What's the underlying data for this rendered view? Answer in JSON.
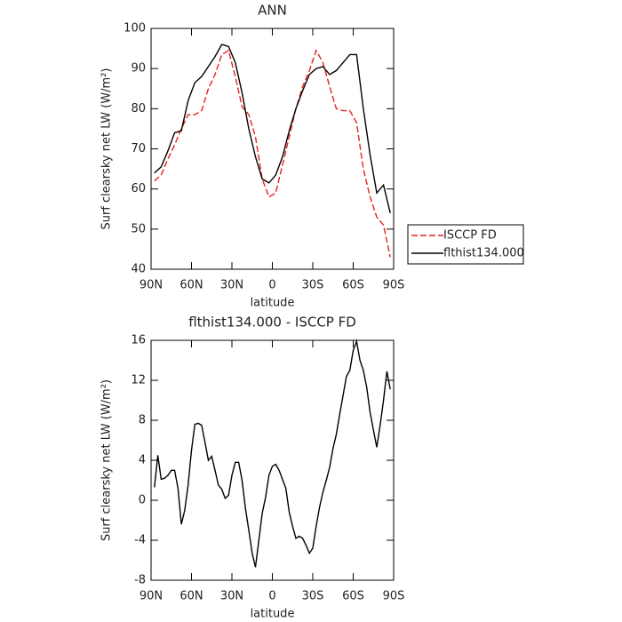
{
  "chart_data": [
    {
      "type": "line",
      "title": "ANN",
      "xlabel": "latitude",
      "ylabel": "Surf clearsky net LW (W/m²)",
      "x": [
        87.5,
        82.5,
        77.5,
        72.5,
        67.5,
        62.5,
        57.5,
        52.5,
        47.5,
        42.5,
        37.5,
        32.5,
        27.5,
        22.5,
        17.5,
        12.5,
        7.5,
        2.5,
        -2.5,
        -7.5,
        -12.5,
        -17.5,
        -22.5,
        -27.5,
        -32.5,
        -37.5,
        -42.5,
        -47.5,
        -52.5,
        -57.5,
        -62.5,
        -67.5,
        -72.5,
        -77.5,
        -82.5,
        -87.5
      ],
      "series": [
        {
          "name": "ISCCP FD",
          "color": "#e8201c",
          "dash": true,
          "values": [
            62,
            63.5,
            67.5,
            71,
            75,
            78.5,
            78.5,
            79.5,
            85,
            88.5,
            93.5,
            94.5,
            88,
            80.5,
            78.5,
            73,
            62.5,
            58,
            59,
            66,
            73,
            80,
            85.5,
            89.5,
            94.5,
            91.5,
            85.5,
            80,
            79.5,
            79.5,
            76.5,
            65,
            58,
            53,
            51,
            43
          ]
        },
        {
          "name": "flthist134.000",
          "color": "#000000",
          "dash": false,
          "values": [
            64,
            65.5,
            69.5,
            74,
            74.5,
            82,
            86.5,
            88,
            90.5,
            93,
            96,
            95.5,
            91.5,
            84,
            75,
            68,
            62.5,
            61.5,
            63.5,
            68,
            74.5,
            80,
            84.5,
            88.5,
            90,
            90.5,
            88.5,
            89.5,
            91.5,
            93.5,
            93.5,
            80,
            68.5,
            59,
            61,
            54
          ]
        }
      ],
      "xlim": [
        90,
        -90
      ],
      "xticks": [
        {
          "value": 90,
          "label": "90N"
        },
        {
          "value": 60,
          "label": "60N"
        },
        {
          "value": 30,
          "label": "30N"
        },
        0,
        {
          "value": -30,
          "label": "30S"
        },
        {
          "value": -60,
          "label": "60S"
        },
        {
          "value": -90,
          "label": "90S"
        }
      ],
      "ylim": [
        40,
        100
      ],
      "yticks": [
        40,
        50,
        60,
        70,
        80,
        90,
        100
      ],
      "legend": "right"
    },
    {
      "type": "line",
      "title": "flthist134.000 - ISCCP FD",
      "xlabel": "latitude",
      "ylabel": "Surf clearsky net LW (W/m²)",
      "x": [
        87.5,
        85,
        82.5,
        80,
        77.5,
        75,
        72.5,
        70,
        67.5,
        65,
        62.5,
        60,
        57.5,
        55,
        52.5,
        50,
        47.5,
        45,
        42.5,
        40,
        37.5,
        35,
        32.5,
        30,
        27.5,
        25,
        22.5,
        20,
        17.5,
        15,
        12.5,
        10,
        7.5,
        5,
        2.5,
        0,
        -2.5,
        -5,
        -7.5,
        -10,
        -12.5,
        -15,
        -17.5,
        -20,
        -22.5,
        -25,
        -27.5,
        -30,
        -32.5,
        -35,
        -37.5,
        -40,
        -42.5,
        -45,
        -47.5,
        -50,
        -52.5,
        -55,
        -57.5,
        -60,
        -62.5,
        -65,
        -67.5,
        -70,
        -72.5,
        -75,
        -77.5,
        -80,
        -82.5,
        -85,
        -87.5
      ],
      "values": [
        1.3,
        4.5,
        2.1,
        2.2,
        2.5,
        3,
        3,
        1.2,
        -2.4,
        -1,
        1.5,
        5,
        7.6,
        7.7,
        7.5,
        5.8,
        4,
        4.4,
        3,
        1.5,
        1.1,
        0.2,
        0.5,
        2.5,
        3.8,
        3.8,
        2,
        -0.8,
        -3,
        -5.3,
        -6.7,
        -4,
        -1.3,
        0.3,
        2.5,
        3.4,
        3.6,
        3,
        2.1,
        1.2,
        -1.2,
        -2.6,
        -3.8,
        -3.6,
        -3.8,
        -4.5,
        -5.3,
        -4.8,
        -2.6,
        -0.7,
        0.8,
        2,
        3.3,
        5.2,
        6.6,
        8.6,
        10.5,
        12.4,
        13,
        15,
        15.9,
        14,
        13,
        11.3,
        8.8,
        7,
        5.3,
        7.5,
        10,
        12.9,
        11.1
      ],
      "color": "#000000",
      "xlim": [
        90,
        -90
      ],
      "xticks": [
        {
          "value": 90,
          "label": "90N"
        },
        {
          "value": 60,
          "label": "60N"
        },
        {
          "value": 30,
          "label": "30N"
        },
        0,
        {
          "value": -30,
          "label": "30S"
        },
        {
          "value": -60,
          "label": "60S"
        },
        {
          "value": -90,
          "label": "90S"
        }
      ],
      "ylim": [
        -8,
        16
      ],
      "yticks": [
        -8,
        -4,
        0,
        4,
        8,
        12,
        16
      ]
    }
  ]
}
